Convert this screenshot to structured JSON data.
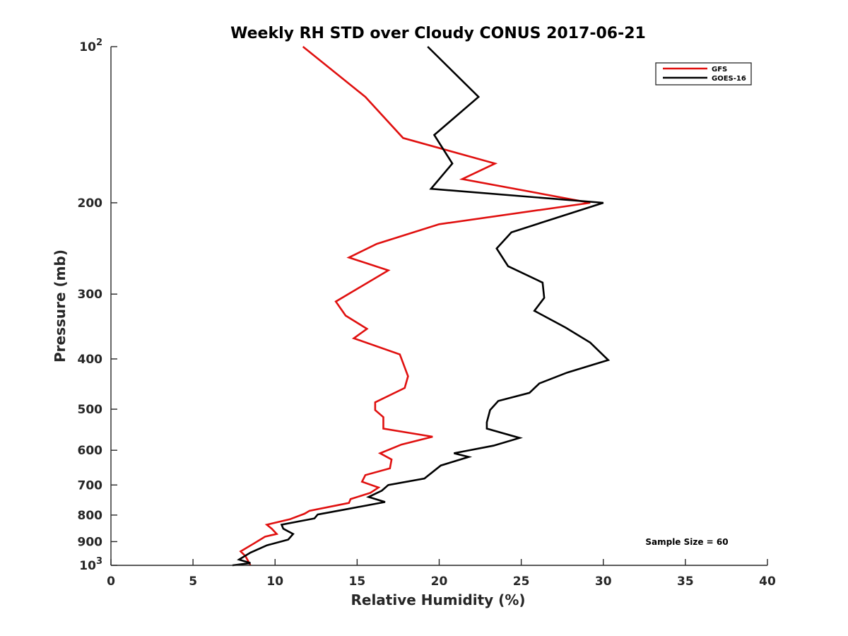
{
  "chart_data": {
    "type": "line",
    "title": "Weekly RH STD over Cloudy CONUS 2017-06-21",
    "xlabel": "Relative Humidity (%)",
    "ylabel": "Pressure (mb)",
    "xlim": [
      0,
      40
    ],
    "ylim": [
      100,
      1000
    ],
    "yscale": "log",
    "y_reversed": true,
    "grid": false,
    "legend_position": "top-right",
    "x_ticks": [
      0,
      5,
      10,
      15,
      20,
      25,
      30,
      35,
      40
    ],
    "x_tick_labels": [
      "0",
      "5",
      "10",
      "15",
      "20",
      "25",
      "30",
      "35",
      "40"
    ],
    "y_ticks": [
      100,
      200,
      300,
      400,
      500,
      600,
      700,
      800,
      900,
      1000
    ],
    "y_tick_labels": [
      {
        "base": "10",
        "exp": "2"
      },
      {
        "base": "200",
        "exp": ""
      },
      {
        "base": "300",
        "exp": ""
      },
      {
        "base": "400",
        "exp": ""
      },
      {
        "base": "500",
        "exp": ""
      },
      {
        "base": "600",
        "exp": ""
      },
      {
        "base": "700",
        "exp": ""
      },
      {
        "base": "800",
        "exp": ""
      },
      {
        "base": "900",
        "exp": ""
      },
      {
        "base": "10",
        "exp": "3"
      }
    ],
    "annotation": "Sample Size = 60",
    "series": [
      {
        "name": "GFS",
        "color": "#e0100f",
        "points": [
          [
            11.7,
            100
          ],
          [
            15.5,
            125
          ],
          [
            17.8,
            150
          ],
          [
            23.4,
            168
          ],
          [
            21.4,
            180
          ],
          [
            29.2,
            200
          ],
          [
            20.0,
            220
          ],
          [
            16.2,
            240
          ],
          [
            14.5,
            255
          ],
          [
            16.9,
            270
          ],
          [
            13.7,
            310
          ],
          [
            14.3,
            330
          ],
          [
            15.6,
            350
          ],
          [
            14.8,
            365
          ],
          [
            17.6,
            392
          ],
          [
            18.1,
            432
          ],
          [
            17.9,
            455
          ],
          [
            16.1,
            485
          ],
          [
            16.1,
            502
          ],
          [
            16.6,
            518
          ],
          [
            16.6,
            545
          ],
          [
            19.6,
            565
          ],
          [
            17.7,
            585
          ],
          [
            16.4,
            608
          ],
          [
            17.1,
            625
          ],
          [
            17.0,
            650
          ],
          [
            15.5,
            670
          ],
          [
            15.3,
            690
          ],
          [
            16.3,
            708
          ],
          [
            15.8,
            725
          ],
          [
            14.6,
            745
          ],
          [
            14.5,
            758
          ],
          [
            12.1,
            785
          ],
          [
            11.8,
            795
          ],
          [
            10.9,
            815
          ],
          [
            9.5,
            835
          ],
          [
            9.8,
            850
          ],
          [
            10.1,
            870
          ],
          [
            9.4,
            880
          ],
          [
            8.7,
            908
          ],
          [
            7.9,
            940
          ],
          [
            8.2,
            960
          ],
          [
            8.5,
            1000
          ]
        ]
      },
      {
        "name": "GOES-16",
        "color": "#000000",
        "points": [
          [
            19.3,
            100
          ],
          [
            22.4,
            125
          ],
          [
            19.7,
            148
          ],
          [
            20.1,
            155
          ],
          [
            20.8,
            168
          ],
          [
            19.5,
            188
          ],
          [
            30.0,
            200
          ],
          [
            24.4,
            228
          ],
          [
            23.5,
            245
          ],
          [
            24.2,
            265
          ],
          [
            26.3,
            285
          ],
          [
            26.4,
            305
          ],
          [
            25.8,
            323
          ],
          [
            27.7,
            348
          ],
          [
            29.2,
            372
          ],
          [
            30.3,
            402
          ],
          [
            27.8,
            425
          ],
          [
            26.1,
            446
          ],
          [
            25.5,
            465
          ],
          [
            23.6,
            482
          ],
          [
            23.1,
            502
          ],
          [
            22.9,
            530
          ],
          [
            22.9,
            545
          ],
          [
            24.9,
            568
          ],
          [
            23.3,
            588
          ],
          [
            20.9,
            608
          ],
          [
            21.8,
            618
          ],
          [
            20.1,
            642
          ],
          [
            19.1,
            680
          ],
          [
            16.9,
            700
          ],
          [
            16.5,
            718
          ],
          [
            15.7,
            738
          ],
          [
            16.7,
            755
          ],
          [
            14.3,
            780
          ],
          [
            12.6,
            798
          ],
          [
            12.4,
            812
          ],
          [
            10.4,
            835
          ],
          [
            10.5,
            850
          ],
          [
            11.1,
            870
          ],
          [
            10.8,
            892
          ],
          [
            9.5,
            915
          ],
          [
            8.5,
            945
          ],
          [
            7.8,
            975
          ],
          [
            8.5,
            990
          ],
          [
            7.4,
            1000
          ]
        ]
      }
    ]
  }
}
